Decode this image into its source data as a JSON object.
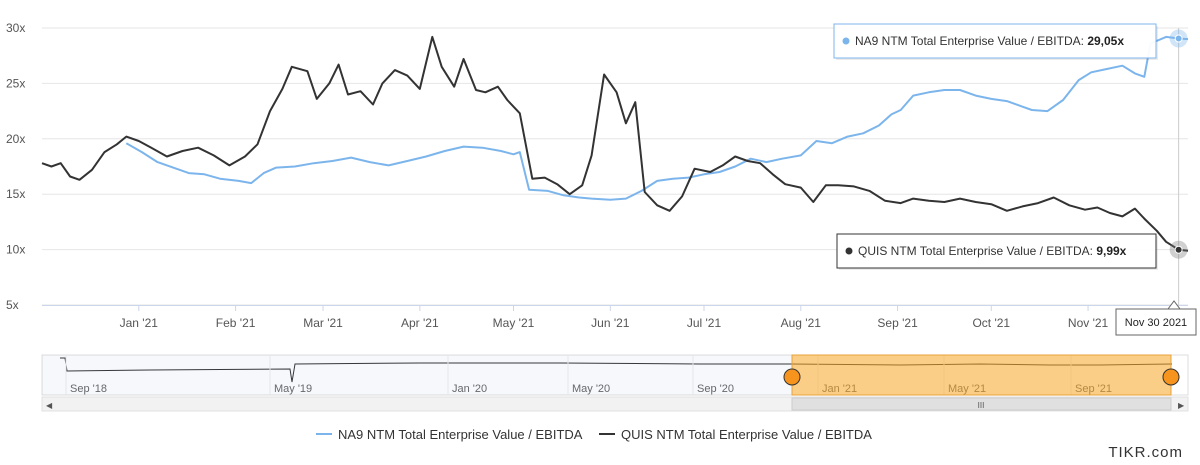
{
  "chart_data": {
    "type": "line",
    "ylim": [
      5,
      30
    ],
    "y_ticks": [
      "5x",
      "10x",
      "15x",
      "20x",
      "25x",
      "30x"
    ],
    "x_ticks": [
      "Jan '21",
      "Feb '21",
      "Mar '21",
      "Apr '21",
      "May '21",
      "Jun '21",
      "Jul '21",
      "Aug '21",
      "Sep '21",
      "Oct '21",
      "Nov '21"
    ],
    "x_tick_dates": [
      "2021-01-01",
      "2021-02-01",
      "2021-03-01",
      "2021-04-01",
      "2021-05-01",
      "2021-06-01",
      "2021-07-01",
      "2021-08-01",
      "2021-09-01",
      "2021-10-01",
      "2021-11-01"
    ],
    "x_range": [
      "2020-12-01",
      "2021-12-03"
    ],
    "grid": true,
    "legend_position": "bottom-center",
    "series": [
      {
        "name": "NA9 NTM Total Enterprise Value / EBITDA",
        "color": "#7cb5ec",
        "points": [
          [
            "2020-12-28",
            19.6
          ],
          [
            "2021-01-02",
            18.8
          ],
          [
            "2021-01-07",
            17.9
          ],
          [
            "2021-01-12",
            17.4
          ],
          [
            "2021-01-17",
            16.9
          ],
          [
            "2021-01-22",
            16.8
          ],
          [
            "2021-01-27",
            16.4
          ],
          [
            "2021-02-02",
            16.2
          ],
          [
            "2021-02-06",
            16.0
          ],
          [
            "2021-02-10",
            16.9
          ],
          [
            "2021-02-14",
            17.4
          ],
          [
            "2021-02-20",
            17.5
          ],
          [
            "2021-02-26",
            17.8
          ],
          [
            "2021-03-04",
            18.0
          ],
          [
            "2021-03-10",
            18.3
          ],
          [
            "2021-03-16",
            17.9
          ],
          [
            "2021-03-22",
            17.6
          ],
          [
            "2021-03-28",
            18.0
          ],
          [
            "2021-04-03",
            18.4
          ],
          [
            "2021-04-09",
            18.9
          ],
          [
            "2021-04-15",
            19.3
          ],
          [
            "2021-04-21",
            19.2
          ],
          [
            "2021-04-27",
            18.9
          ],
          [
            "2021-05-01",
            18.6
          ],
          [
            "2021-05-03",
            18.8
          ],
          [
            "2021-05-06",
            15.4
          ],
          [
            "2021-05-12",
            15.3
          ],
          [
            "2021-05-17",
            14.9
          ],
          [
            "2021-05-22",
            14.7
          ],
          [
            "2021-05-26",
            14.6
          ],
          [
            "2021-06-01",
            14.5
          ],
          [
            "2021-06-06",
            14.6
          ],
          [
            "2021-06-11",
            15.3
          ],
          [
            "2021-06-16",
            16.2
          ],
          [
            "2021-06-21",
            16.4
          ],
          [
            "2021-06-26",
            16.5
          ],
          [
            "2021-07-01",
            16.8
          ],
          [
            "2021-07-06",
            17.0
          ],
          [
            "2021-07-11",
            17.5
          ],
          [
            "2021-07-16",
            18.2
          ],
          [
            "2021-07-21",
            17.9
          ],
          [
            "2021-07-26",
            18.2
          ],
          [
            "2021-08-01",
            18.5
          ],
          [
            "2021-08-06",
            19.8
          ],
          [
            "2021-08-11",
            19.6
          ],
          [
            "2021-08-16",
            20.2
          ],
          [
            "2021-08-21",
            20.5
          ],
          [
            "2021-08-26",
            21.2
          ],
          [
            "2021-08-30",
            22.2
          ],
          [
            "2021-09-02",
            22.6
          ],
          [
            "2021-09-06",
            23.9
          ],
          [
            "2021-09-11",
            24.2
          ],
          [
            "2021-09-16",
            24.4
          ],
          [
            "2021-09-21",
            24.4
          ],
          [
            "2021-09-26",
            23.9
          ],
          [
            "2021-10-01",
            23.6
          ],
          [
            "2021-10-06",
            23.4
          ],
          [
            "2021-10-11",
            22.9
          ],
          [
            "2021-10-14",
            22.6
          ],
          [
            "2021-10-19",
            22.5
          ],
          [
            "2021-10-24",
            23.5
          ],
          [
            "2021-10-29",
            25.3
          ],
          [
            "2021-11-02",
            26.0
          ],
          [
            "2021-11-07",
            26.3
          ],
          [
            "2021-11-12",
            26.6
          ],
          [
            "2021-11-16",
            25.9
          ],
          [
            "2021-11-19",
            25.6
          ],
          [
            "2021-11-21",
            28.6
          ],
          [
            "2021-11-26",
            29.2
          ],
          [
            "2021-11-30",
            29.05
          ],
          [
            "2021-12-03",
            29.0
          ]
        ]
      },
      {
        "name": "QUIS NTM Total Enterprise Value / EBITDA",
        "color": "#333333",
        "points": [
          [
            "2020-12-01",
            17.8
          ],
          [
            "2020-12-04",
            17.5
          ],
          [
            "2020-12-07",
            17.8
          ],
          [
            "2020-12-10",
            16.6
          ],
          [
            "2020-12-13",
            16.3
          ],
          [
            "2020-12-17",
            17.2
          ],
          [
            "2020-12-21",
            18.8
          ],
          [
            "2020-12-25",
            19.5
          ],
          [
            "2020-12-28",
            20.2
          ],
          [
            "2021-01-01",
            19.8
          ],
          [
            "2021-01-05",
            19.2
          ],
          [
            "2021-01-10",
            18.4
          ],
          [
            "2021-01-15",
            18.9
          ],
          [
            "2021-01-20",
            19.2
          ],
          [
            "2021-01-25",
            18.5
          ],
          [
            "2021-01-30",
            17.6
          ],
          [
            "2021-02-04",
            18.4
          ],
          [
            "2021-02-08",
            19.5
          ],
          [
            "2021-02-12",
            22.5
          ],
          [
            "2021-02-16",
            24.5
          ],
          [
            "2021-02-19",
            26.5
          ],
          [
            "2021-02-24",
            26.1
          ],
          [
            "2021-02-27",
            23.6
          ],
          [
            "2021-03-03",
            25.0
          ],
          [
            "2021-03-06",
            26.7
          ],
          [
            "2021-03-09",
            24.0
          ],
          [
            "2021-03-13",
            24.3
          ],
          [
            "2021-03-17",
            23.1
          ],
          [
            "2021-03-20",
            25.0
          ],
          [
            "2021-03-24",
            26.2
          ],
          [
            "2021-03-28",
            25.7
          ],
          [
            "2021-04-01",
            24.5
          ],
          [
            "2021-04-05",
            29.2
          ],
          [
            "2021-04-08",
            26.5
          ],
          [
            "2021-04-12",
            24.7
          ],
          [
            "2021-04-15",
            27.2
          ],
          [
            "2021-04-19",
            24.4
          ],
          [
            "2021-04-22",
            24.2
          ],
          [
            "2021-04-26",
            24.7
          ],
          [
            "2021-04-29",
            23.5
          ],
          [
            "2021-05-03",
            22.3
          ],
          [
            "2021-05-07",
            16.4
          ],
          [
            "2021-05-11",
            16.5
          ],
          [
            "2021-05-15",
            15.9
          ],
          [
            "2021-05-19",
            15.0
          ],
          [
            "2021-05-23",
            15.8
          ],
          [
            "2021-05-26",
            18.5
          ],
          [
            "2021-05-30",
            25.8
          ],
          [
            "2021-06-03",
            24.2
          ],
          [
            "2021-06-06",
            21.4
          ],
          [
            "2021-06-09",
            23.3
          ],
          [
            "2021-06-12",
            15.2
          ],
          [
            "2021-06-16",
            14.0
          ],
          [
            "2021-06-20",
            13.5
          ],
          [
            "2021-06-24",
            14.8
          ],
          [
            "2021-06-28",
            17.3
          ],
          [
            "2021-07-03",
            17.0
          ],
          [
            "2021-07-07",
            17.6
          ],
          [
            "2021-07-11",
            18.4
          ],
          [
            "2021-07-15",
            18.0
          ],
          [
            "2021-07-19",
            17.8
          ],
          [
            "2021-07-23",
            16.8
          ],
          [
            "2021-07-27",
            15.9
          ],
          [
            "2021-08-01",
            15.6
          ],
          [
            "2021-08-05",
            14.3
          ],
          [
            "2021-08-09",
            15.8
          ],
          [
            "2021-08-13",
            15.8
          ],
          [
            "2021-08-18",
            15.7
          ],
          [
            "2021-08-23",
            15.3
          ],
          [
            "2021-08-28",
            14.4
          ],
          [
            "2021-09-02",
            14.2
          ],
          [
            "2021-09-06",
            14.6
          ],
          [
            "2021-09-11",
            14.4
          ],
          [
            "2021-09-16",
            14.3
          ],
          [
            "2021-09-21",
            14.6
          ],
          [
            "2021-09-26",
            14.3
          ],
          [
            "2021-10-01",
            14.1
          ],
          [
            "2021-10-06",
            13.5
          ],
          [
            "2021-10-11",
            13.9
          ],
          [
            "2021-10-16",
            14.2
          ],
          [
            "2021-10-21",
            14.7
          ],
          [
            "2021-10-26",
            14.0
          ],
          [
            "2021-10-31",
            13.6
          ],
          [
            "2021-11-04",
            13.8
          ],
          [
            "2021-11-08",
            13.3
          ],
          [
            "2021-11-12",
            13.0
          ],
          [
            "2021-11-16",
            13.7
          ],
          [
            "2021-11-19",
            12.8
          ],
          [
            "2021-11-23",
            11.7
          ],
          [
            "2021-11-26",
            10.7
          ],
          [
            "2021-11-30",
            9.99
          ],
          [
            "2021-12-03",
            9.9
          ]
        ]
      }
    ],
    "tooltips": [
      {
        "series_index": 0,
        "label": "NA9 NTM Total Enterprise Value / EBITDA: ",
        "value": "29,05x"
      },
      {
        "series_index": 1,
        "label": "QUIS NTM Total Enterprise Value / EBITDA: ",
        "value": "9,99x"
      }
    ],
    "crosshair_date": "Nov 30 2021",
    "navigator": {
      "labels": [
        "Sep '18",
        "May '19",
        "Jan '20",
        "May '20",
        "Sep '20",
        "Jan '21",
        "May '21",
        "Sep '21"
      ],
      "selected_range": "last-12-months"
    }
  },
  "legend": {
    "items": [
      {
        "name": "NA9 NTM Total Enterprise Value / EBITDA",
        "color": "#7cb5ec"
      },
      {
        "name": "QUIS NTM Total Enterprise Value / EBITDA",
        "color": "#333333"
      }
    ]
  },
  "watermark": "TIKR.com",
  "scrollbar": {
    "thumb_glyph": "III",
    "left_arrow": "◀",
    "right_arrow": "▶"
  }
}
